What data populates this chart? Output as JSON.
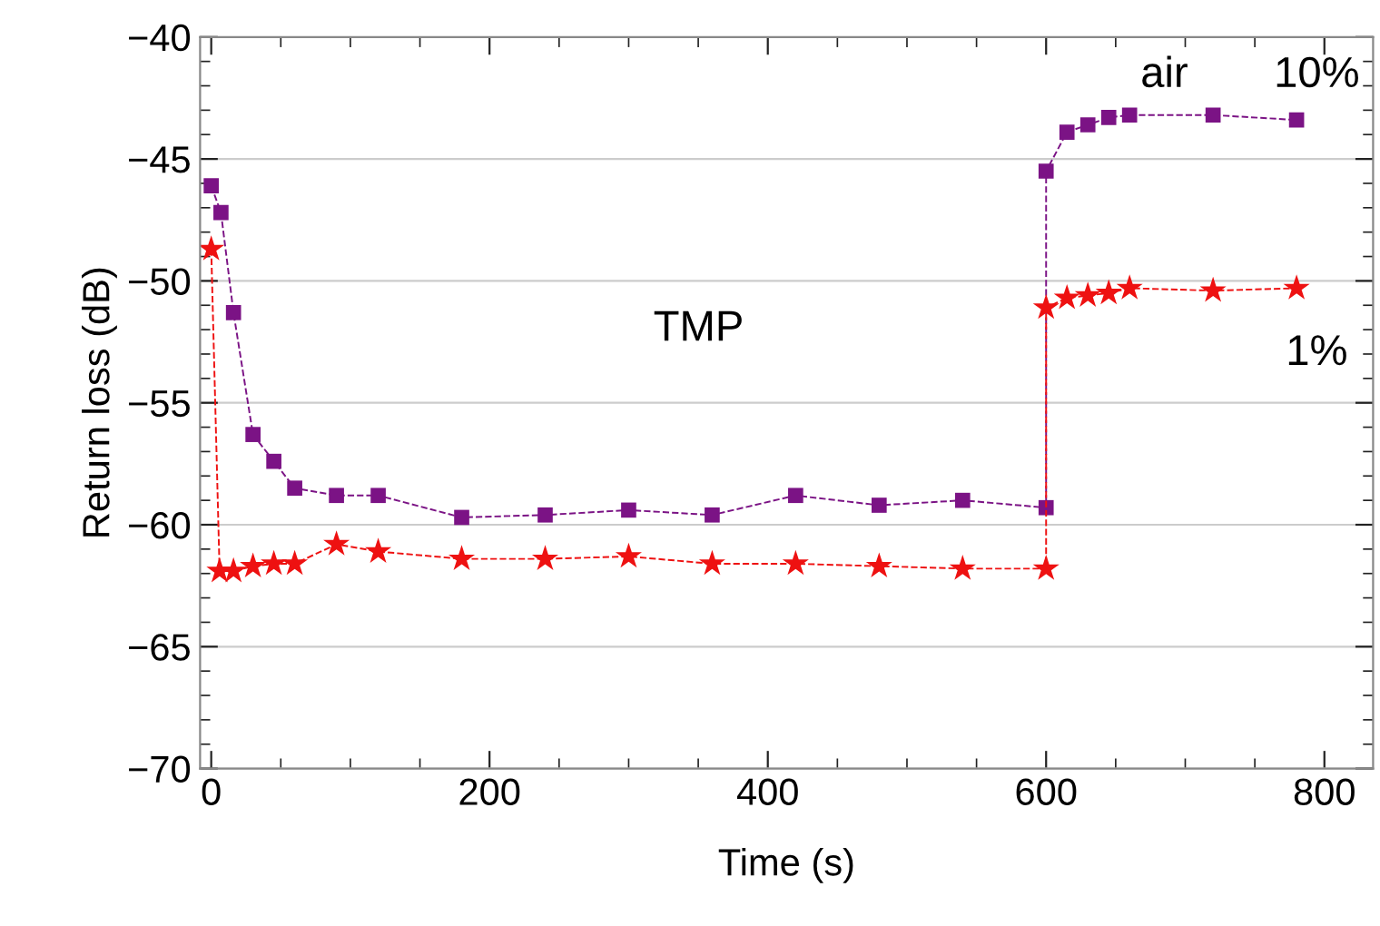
{
  "chart_data": {
    "type": "line",
    "xlabel": "Time (s)",
    "ylabel": "Return loss (dB)",
    "xlim": [
      -8,
      835
    ],
    "ylim": [
      -70,
      -40
    ],
    "xticks": [
      0,
      200,
      400,
      600,
      800
    ],
    "yticks": [
      -70,
      -65,
      -60,
      -55,
      -50,
      -45,
      -40
    ],
    "grid": "y",
    "line_style": "dashed",
    "series": [
      {
        "marker": "square",
        "color": "#7b1385",
        "x": [
          0,
          7,
          16,
          30,
          45,
          60,
          90,
          120,
          180,
          240,
          300,
          360,
          420,
          480,
          540,
          600,
          600,
          615,
          630,
          645,
          660,
          720,
          780
        ],
        "values": [
          -46.1,
          -47.2,
          -51.3,
          -56.3,
          -57.4,
          -58.5,
          -58.8,
          -58.8,
          -59.7,
          -59.6,
          -59.4,
          -59.6,
          -58.8,
          -59.2,
          -59.0,
          -59.3,
          -45.5,
          -43.9,
          -43.6,
          -43.3,
          -43.2,
          -43.2,
          -43.4
        ]
      },
      {
        "marker": "star",
        "color": "#ee1111",
        "x": [
          0,
          6,
          16,
          30,
          45,
          60,
          90,
          120,
          180,
          240,
          300,
          360,
          420,
          480,
          540,
          600,
          600,
          615,
          630,
          645,
          660,
          720,
          780
        ],
        "values": [
          -48.7,
          -61.9,
          -61.9,
          -61.7,
          -61.6,
          -61.6,
          -60.8,
          -61.1,
          -61.4,
          -61.4,
          -61.3,
          -61.6,
          -61.6,
          -61.7,
          -61.8,
          -61.8,
          -51.1,
          -50.7,
          -50.6,
          -50.5,
          -50.3,
          -50.4,
          -50.3
        ]
      }
    ],
    "annotations": [
      "TMP",
      "air",
      "10%",
      "1%"
    ]
  }
}
